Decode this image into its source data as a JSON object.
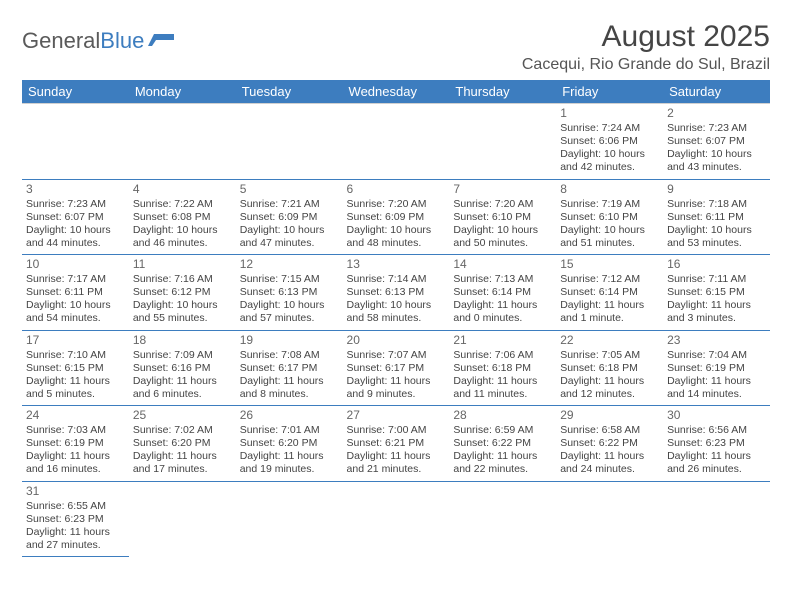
{
  "brand": {
    "part1": "General",
    "part2": "Blue"
  },
  "title": "August 2025",
  "location": "Cacequi, Rio Grande do Sul, Brazil",
  "colors": {
    "header_bg": "#3d7dbf",
    "header_text": "#ffffff",
    "border": "#3d7dbf",
    "text": "#444444",
    "title_text": "#454545",
    "logo_grey": "#5a5a5a"
  },
  "typography": {
    "title_fontsize": 30,
    "location_fontsize": 16,
    "header_fontsize": 13,
    "cell_fontsize": 10.5,
    "daynum_fontsize": 12
  },
  "day_headers": [
    "Sunday",
    "Monday",
    "Tuesday",
    "Wednesday",
    "Thursday",
    "Friday",
    "Saturday"
  ],
  "weeks": [
    [
      null,
      null,
      null,
      null,
      null,
      {
        "n": "1",
        "sr": "Sunrise: 7:24 AM",
        "ss": "Sunset: 6:06 PM",
        "d1": "Daylight: 10 hours",
        "d2": "and 42 minutes."
      },
      {
        "n": "2",
        "sr": "Sunrise: 7:23 AM",
        "ss": "Sunset: 6:07 PM",
        "d1": "Daylight: 10 hours",
        "d2": "and 43 minutes."
      }
    ],
    [
      {
        "n": "3",
        "sr": "Sunrise: 7:23 AM",
        "ss": "Sunset: 6:07 PM",
        "d1": "Daylight: 10 hours",
        "d2": "and 44 minutes."
      },
      {
        "n": "4",
        "sr": "Sunrise: 7:22 AM",
        "ss": "Sunset: 6:08 PM",
        "d1": "Daylight: 10 hours",
        "d2": "and 46 minutes."
      },
      {
        "n": "5",
        "sr": "Sunrise: 7:21 AM",
        "ss": "Sunset: 6:09 PM",
        "d1": "Daylight: 10 hours",
        "d2": "and 47 minutes."
      },
      {
        "n": "6",
        "sr": "Sunrise: 7:20 AM",
        "ss": "Sunset: 6:09 PM",
        "d1": "Daylight: 10 hours",
        "d2": "and 48 minutes."
      },
      {
        "n": "7",
        "sr": "Sunrise: 7:20 AM",
        "ss": "Sunset: 6:10 PM",
        "d1": "Daylight: 10 hours",
        "d2": "and 50 minutes."
      },
      {
        "n": "8",
        "sr": "Sunrise: 7:19 AM",
        "ss": "Sunset: 6:10 PM",
        "d1": "Daylight: 10 hours",
        "d2": "and 51 minutes."
      },
      {
        "n": "9",
        "sr": "Sunrise: 7:18 AM",
        "ss": "Sunset: 6:11 PM",
        "d1": "Daylight: 10 hours",
        "d2": "and 53 minutes."
      }
    ],
    [
      {
        "n": "10",
        "sr": "Sunrise: 7:17 AM",
        "ss": "Sunset: 6:11 PM",
        "d1": "Daylight: 10 hours",
        "d2": "and 54 minutes."
      },
      {
        "n": "11",
        "sr": "Sunrise: 7:16 AM",
        "ss": "Sunset: 6:12 PM",
        "d1": "Daylight: 10 hours",
        "d2": "and 55 minutes."
      },
      {
        "n": "12",
        "sr": "Sunrise: 7:15 AM",
        "ss": "Sunset: 6:13 PM",
        "d1": "Daylight: 10 hours",
        "d2": "and 57 minutes."
      },
      {
        "n": "13",
        "sr": "Sunrise: 7:14 AM",
        "ss": "Sunset: 6:13 PM",
        "d1": "Daylight: 10 hours",
        "d2": "and 58 minutes."
      },
      {
        "n": "14",
        "sr": "Sunrise: 7:13 AM",
        "ss": "Sunset: 6:14 PM",
        "d1": "Daylight: 11 hours",
        "d2": "and 0 minutes."
      },
      {
        "n": "15",
        "sr": "Sunrise: 7:12 AM",
        "ss": "Sunset: 6:14 PM",
        "d1": "Daylight: 11 hours",
        "d2": "and 1 minute."
      },
      {
        "n": "16",
        "sr": "Sunrise: 7:11 AM",
        "ss": "Sunset: 6:15 PM",
        "d1": "Daylight: 11 hours",
        "d2": "and 3 minutes."
      }
    ],
    [
      {
        "n": "17",
        "sr": "Sunrise: 7:10 AM",
        "ss": "Sunset: 6:15 PM",
        "d1": "Daylight: 11 hours",
        "d2": "and 5 minutes."
      },
      {
        "n": "18",
        "sr": "Sunrise: 7:09 AM",
        "ss": "Sunset: 6:16 PM",
        "d1": "Daylight: 11 hours",
        "d2": "and 6 minutes."
      },
      {
        "n": "19",
        "sr": "Sunrise: 7:08 AM",
        "ss": "Sunset: 6:17 PM",
        "d1": "Daylight: 11 hours",
        "d2": "and 8 minutes."
      },
      {
        "n": "20",
        "sr": "Sunrise: 7:07 AM",
        "ss": "Sunset: 6:17 PM",
        "d1": "Daylight: 11 hours",
        "d2": "and 9 minutes."
      },
      {
        "n": "21",
        "sr": "Sunrise: 7:06 AM",
        "ss": "Sunset: 6:18 PM",
        "d1": "Daylight: 11 hours",
        "d2": "and 11 minutes."
      },
      {
        "n": "22",
        "sr": "Sunrise: 7:05 AM",
        "ss": "Sunset: 6:18 PM",
        "d1": "Daylight: 11 hours",
        "d2": "and 12 minutes."
      },
      {
        "n": "23",
        "sr": "Sunrise: 7:04 AM",
        "ss": "Sunset: 6:19 PM",
        "d1": "Daylight: 11 hours",
        "d2": "and 14 minutes."
      }
    ],
    [
      {
        "n": "24",
        "sr": "Sunrise: 7:03 AM",
        "ss": "Sunset: 6:19 PM",
        "d1": "Daylight: 11 hours",
        "d2": "and 16 minutes."
      },
      {
        "n": "25",
        "sr": "Sunrise: 7:02 AM",
        "ss": "Sunset: 6:20 PM",
        "d1": "Daylight: 11 hours",
        "d2": "and 17 minutes."
      },
      {
        "n": "26",
        "sr": "Sunrise: 7:01 AM",
        "ss": "Sunset: 6:20 PM",
        "d1": "Daylight: 11 hours",
        "d2": "and 19 minutes."
      },
      {
        "n": "27",
        "sr": "Sunrise: 7:00 AM",
        "ss": "Sunset: 6:21 PM",
        "d1": "Daylight: 11 hours",
        "d2": "and 21 minutes."
      },
      {
        "n": "28",
        "sr": "Sunrise: 6:59 AM",
        "ss": "Sunset: 6:22 PM",
        "d1": "Daylight: 11 hours",
        "d2": "and 22 minutes."
      },
      {
        "n": "29",
        "sr": "Sunrise: 6:58 AM",
        "ss": "Sunset: 6:22 PM",
        "d1": "Daylight: 11 hours",
        "d2": "and 24 minutes."
      },
      {
        "n": "30",
        "sr": "Sunrise: 6:56 AM",
        "ss": "Sunset: 6:23 PM",
        "d1": "Daylight: 11 hours",
        "d2": "and 26 minutes."
      }
    ],
    [
      {
        "n": "31",
        "sr": "Sunrise: 6:55 AM",
        "ss": "Sunset: 6:23 PM",
        "d1": "Daylight: 11 hours",
        "d2": "and 27 minutes."
      },
      null,
      null,
      null,
      null,
      null,
      null
    ]
  ]
}
